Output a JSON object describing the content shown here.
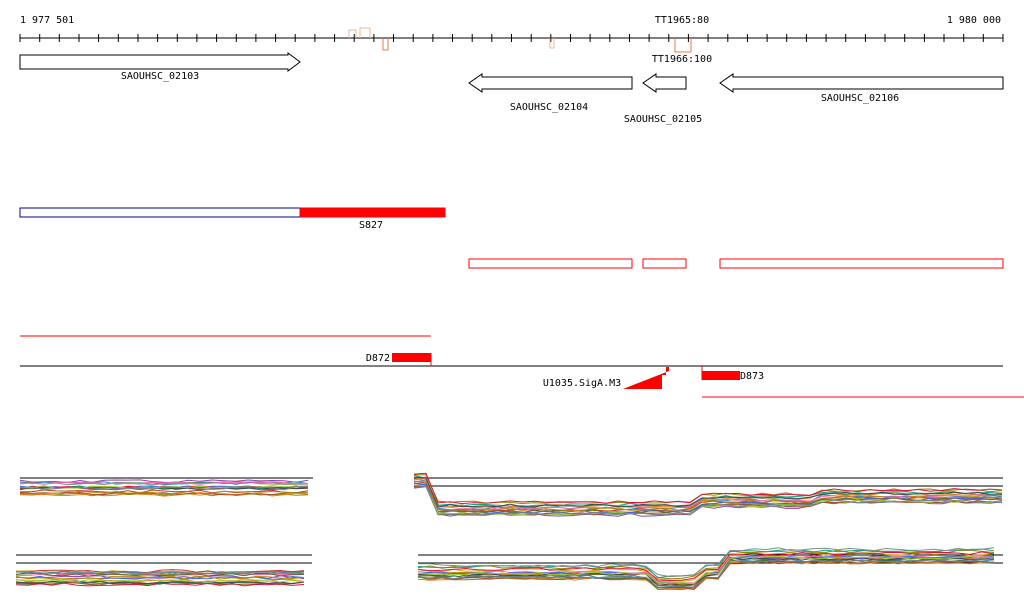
{
  "axis": {
    "start_label": "1 977 501",
    "end_label": "1 980 000",
    "start": 1977501,
    "end": 1980000
  },
  "terminators": [
    {
      "label": "TT1965:80"
    },
    {
      "label": "TT1966:100"
    }
  ],
  "genes": [
    {
      "label": "SAOUHSC_02103",
      "strand": "+"
    },
    {
      "label": "SAOUHSC_02104",
      "strand": "-"
    },
    {
      "label": "SAOUHSC_02105",
      "strand": "-"
    },
    {
      "label": "SAOUHSC_02106",
      "strand": "-"
    }
  ],
  "segments": [
    {
      "label": "S827"
    },
    {
      "label": "D872"
    },
    {
      "label": "D873"
    },
    {
      "label": "U1035.SigA.M3"
    }
  ],
  "colors": {
    "axis": "#000000",
    "gene_outline": "#000000",
    "feature_red": "#ff0000",
    "feature_blue": "#00008b",
    "tick_orange": "#e87a4a"
  },
  "expression_profiles": {
    "series_colors": [
      "#d4a017",
      "#8b8b00",
      "#6b8e23",
      "#c0392b",
      "#8e44ad",
      "#2e86c1",
      "#16a085",
      "#e67e22",
      "#7f8c8d",
      "#a0522d",
      "#ff69b4",
      "#556b2f",
      "#4169e1",
      "#b8860b",
      "#2f4f4f",
      "#dc143c",
      "#9acd32",
      "#708090"
    ]
  }
}
